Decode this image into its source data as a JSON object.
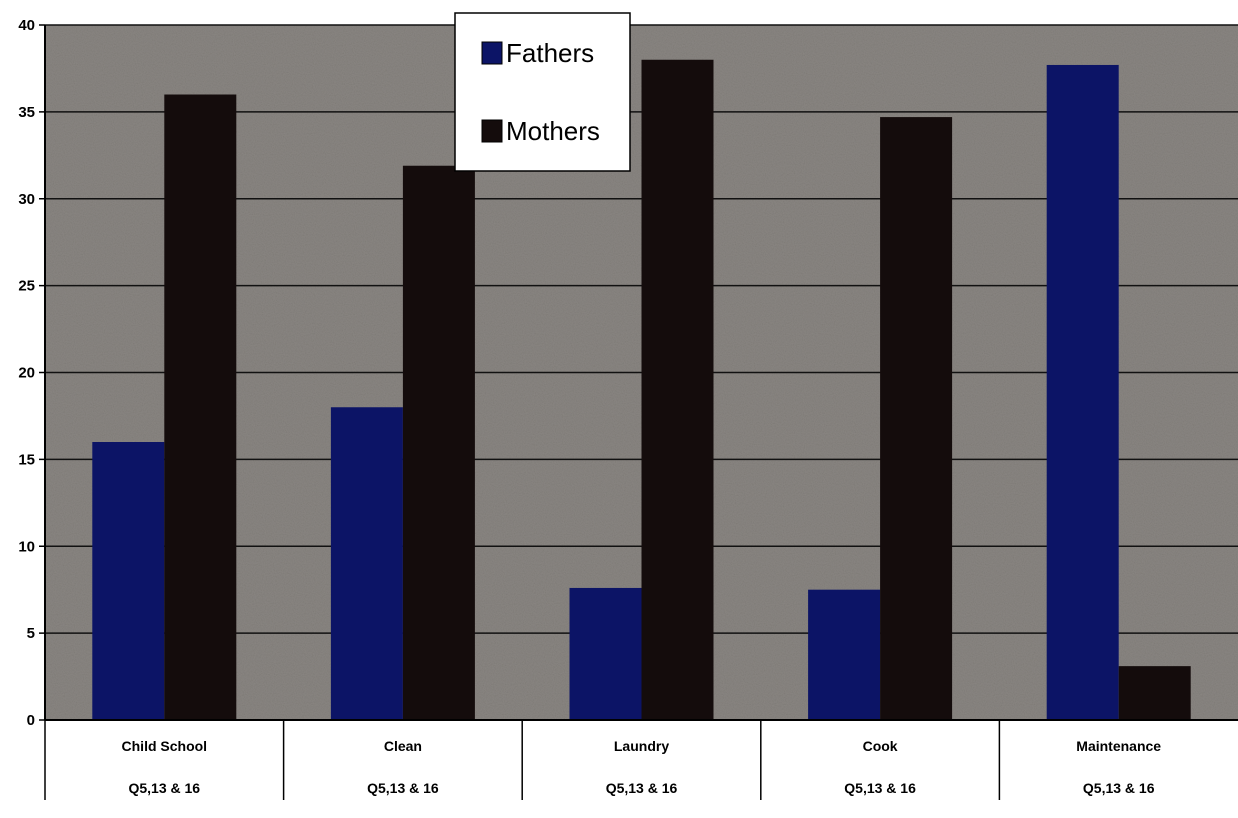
{
  "chart_data": {
    "type": "bar",
    "title": "",
    "xlabel": "",
    "ylabel": "",
    "ylim": [
      0,
      40
    ],
    "yticks": [
      0,
      5,
      10,
      15,
      20,
      25,
      30,
      35,
      40
    ],
    "grid": true,
    "legend_position": "top-center",
    "categories": [
      "Child School",
      "Clean",
      "Laundry",
      "Cook",
      "Maintenance"
    ],
    "category_sublabels": [
      "Q5,13 & 16",
      "Q5,13 & 16",
      "Q5,13 & 16",
      "Q5,13 & 16",
      "Q5,13 & 16"
    ],
    "series": [
      {
        "name": "Fathers",
        "values": [
          16,
          18,
          7.6,
          7.5,
          37.7
        ],
        "color": "#0c1466"
      },
      {
        "name": "Mothers",
        "values": [
          36,
          31.9,
          38,
          34.7,
          3.1
        ],
        "color": "#140c0c"
      }
    ],
    "plot_background": "#8a8682"
  }
}
